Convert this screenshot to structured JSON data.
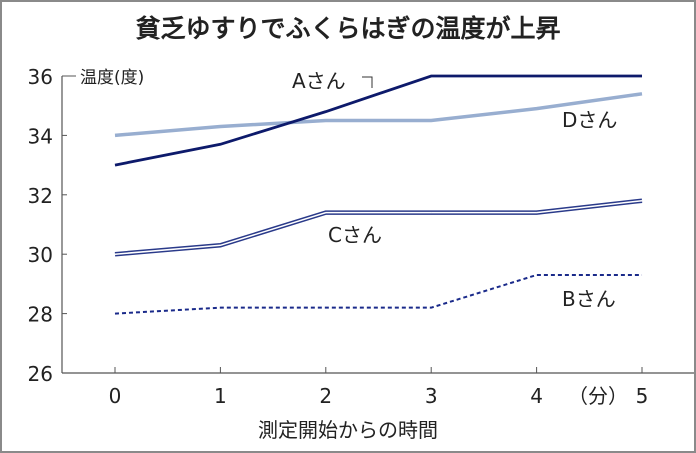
{
  "chart_data": {
    "type": "line",
    "title": "貧乏ゆすりでふくらはぎの温度が上昇",
    "xlabel": "測定開始からの時間",
    "x_unit": "（分）",
    "ylabel": "温度(度)",
    "x": [
      0,
      1,
      2,
      3,
      4,
      5
    ],
    "x_tick_labels": [
      "0",
      "1",
      "2",
      "3",
      "4",
      "5"
    ],
    "ylim": [
      26,
      36
    ],
    "y_ticks": [
      26,
      28,
      30,
      32,
      34,
      36
    ],
    "y_tick_labels": [
      "26",
      "28",
      "30",
      "32",
      "34",
      "36"
    ],
    "grid": false,
    "series": [
      {
        "name": "Aさん",
        "values": [
          33.0,
          33.7,
          34.8,
          36.0,
          36.0,
          36.0
        ],
        "color": "#0d1a6b",
        "style": "solid"
      },
      {
        "name": "Dさん",
        "values": [
          34.0,
          34.3,
          34.5,
          34.5,
          34.9,
          35.4
        ],
        "color": "#98aed0",
        "style": "solid-thick"
      },
      {
        "name": "Cさん",
        "values": [
          30.0,
          30.3,
          31.4,
          31.4,
          31.4,
          31.8
        ],
        "color": "#2a3a8a",
        "style": "double"
      },
      {
        "name": "Bさん",
        "values": [
          28.0,
          28.2,
          28.2,
          28.2,
          29.3,
          29.3
        ],
        "color": "#1a2a8a",
        "style": "dashed"
      }
    ]
  }
}
